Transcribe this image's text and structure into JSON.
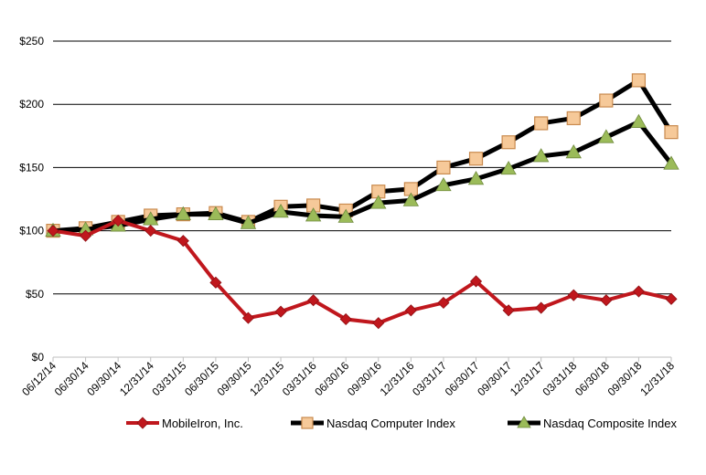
{
  "chart_data": {
    "type": "line",
    "title": "",
    "xlabel": "",
    "ylabel": "",
    "categories": [
      "06/12/14",
      "06/30/14",
      "09/30/14",
      "12/31/14",
      "03/31/15",
      "06/30/15",
      "09/30/15",
      "12/31/15",
      "03/31/16",
      "06/30/16",
      "09/30/16",
      "12/31/16",
      "03/31/17",
      "06/30/17",
      "09/30/17",
      "12/31/17",
      "03/31/18",
      "06/30/18",
      "09/30/18",
      "12/31/18"
    ],
    "y_ticks": [
      "$0",
      "$50",
      "$100",
      "$150",
      "$200",
      "$250"
    ],
    "y_tick_values": [
      0,
      50,
      100,
      150,
      200,
      250
    ],
    "ylim": [
      0,
      250
    ],
    "grid": true,
    "legend_position": "bottom",
    "series": [
      {
        "name": "MobileIron, Inc.",
        "color": "#C0171D",
        "marker": "diamond",
        "values": [
          100,
          96,
          108,
          100,
          92,
          59,
          31,
          36,
          45,
          30,
          27,
          37,
          43,
          60,
          37,
          39,
          49,
          45,
          52,
          46
        ]
      },
      {
        "name": "Nasdaq Computer Index",
        "color": "#000000",
        "marker": "square",
        "marker_color": "#F6C999",
        "values": [
          100,
          102,
          107,
          112,
          113,
          114,
          107,
          119,
          120,
          116,
          131,
          133,
          150,
          157,
          170,
          185,
          189,
          203,
          219,
          178
        ]
      },
      {
        "name": "Nasdaq Composite Index",
        "color": "#000000",
        "marker": "triangle",
        "marker_color": "#9BBB59",
        "values": [
          100,
          101,
          104,
          109,
          113,
          113,
          106,
          115,
          112,
          111,
          122,
          124,
          136,
          141,
          149,
          159,
          162,
          174,
          186,
          153
        ]
      }
    ]
  }
}
